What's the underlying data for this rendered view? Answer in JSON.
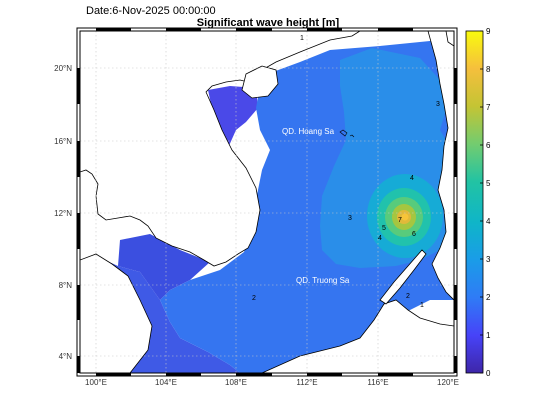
{
  "header": {
    "date_text": "Date:6-Nov-2025 00:00:00",
    "title": "Significant wave height [m]"
  },
  "map": {
    "lon_labels": [
      "100°E",
      "104°E",
      "108°E",
      "112°E",
      "116°E",
      "120°E"
    ],
    "lat_labels": [
      "20°N",
      "16°N",
      "12°N",
      "8°N",
      "4°N"
    ],
    "lon_range": [
      99,
      120.5
    ],
    "lat_range": [
      3,
      22
    ],
    "place_labels": [
      {
        "text": "QD. Hoang Sa"
      },
      {
        "text": "QD. Truong Sa"
      }
    ],
    "contour_labels": [
      "1",
      "2",
      "3",
      "4",
      "5",
      "6",
      "7"
    ],
    "colors": {
      "land": "#ffffff",
      "coast": "#000000",
      "grid": "#cfcfcf"
    }
  },
  "colorbar": {
    "ticks": [
      "0",
      "1",
      "2",
      "3",
      "4",
      "5",
      "6",
      "7",
      "8",
      "9"
    ],
    "range": [
      0,
      9
    ],
    "colormap": "parula",
    "stops": [
      "#3e26a8",
      "#4743f8",
      "#2f7bf6",
      "#1a9ce8",
      "#0fb5c8",
      "#22c3a3",
      "#73cc6f",
      "#c4c434",
      "#f5bf3d",
      "#f9fb0e"
    ]
  }
}
